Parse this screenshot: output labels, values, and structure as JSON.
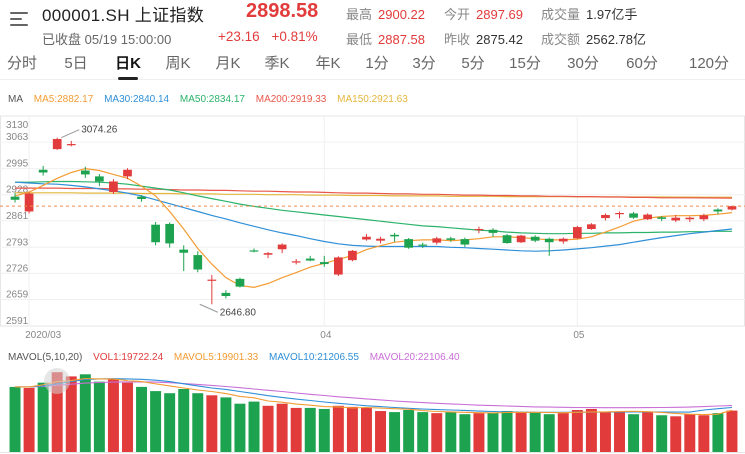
{
  "header": {
    "title": "000001.SH 上证指数",
    "status": "已收盘 05/19 15:00:00",
    "price": "2898.58",
    "change": "+23.16",
    "change_pct": "+0.81%",
    "stats": {
      "high_label": "最高",
      "high": "2900.22",
      "open_label": "今开",
      "open": "2897.69",
      "vol_label": "成交量",
      "vol": "1.97亿手",
      "low_label": "最低",
      "low": "2887.58",
      "prev_label": "昨收",
      "prev": "2875.42",
      "amount_label": "成交额",
      "amount": "2562.78亿"
    }
  },
  "tabs": [
    "分时",
    "5日",
    "日K",
    "周K",
    "月K",
    "季K",
    "年K",
    "1分",
    "3分",
    "5分",
    "15分",
    "30分",
    "60分",
    "120分"
  ],
  "active_tab": "日K",
  "ma_legend": {
    "ma": "MA",
    "ma5": "MA5:2882.17",
    "ma30": "MA30:2840.14",
    "ma50": "MA50:2834.17",
    "ma200": "MA200:2919.33",
    "ma150": "MA150:2921.63"
  },
  "vol_legend": {
    "mavol": "MAVOL(5,10,20)",
    "vol": "VOL1:19722.24",
    "mavol5": "MAVOL5:19901.33",
    "mavol10": "MAVOL10:21206.55",
    "mavol20": "MAVOL20:22106.40"
  },
  "colors": {
    "up": "#e23b3b",
    "down": "#1da34f",
    "ma5": "#f39c33",
    "ma30": "#2f8fd8",
    "ma50": "#2bb36b",
    "ma200": "#e8574a",
    "ma150": "#e3b63c",
    "mavol20": "#c96fd6"
  },
  "chart_data": {
    "type": "candlestick",
    "y_ticks": [
      "3130",
      "3063",
      "2995",
      "2928",
      "2861",
      "2793",
      "2726",
      "2659",
      "2591"
    ],
    "ylim": [
      2591,
      3130
    ],
    "x_labels": [
      {
        "label": "2020/03",
        "index": 1
      },
      {
        "label": "04",
        "index": 22
      },
      {
        "label": "05",
        "index": 40
      }
    ],
    "current_price": 2898.58,
    "annotations": [
      {
        "text": "3074.26",
        "index": 3,
        "value": 3074.26
      },
      {
        "text": "2646.80",
        "index": 13,
        "value": 2646.8
      }
    ],
    "candles": [
      [
        2923,
        2915,
        2932,
        2908
      ],
      [
        2885,
        2931,
        2934,
        2880
      ],
      [
        2992,
        2985,
        3002,
        2977
      ],
      [
        3045,
        3071,
        3074.26,
        3043
      ],
      [
        3055,
        3058,
        3066,
        3052
      ],
      [
        2990,
        2980,
        3000,
        2971
      ],
      [
        2975,
        2962,
        2981,
        2950
      ],
      [
        2935,
        2962,
        2968,
        2930
      ],
      [
        2975,
        2992,
        2996,
        2968
      ],
      [
        2923,
        2917,
        2927,
        2910
      ],
      [
        2851,
        2806,
        2858,
        2798
      ],
      [
        2853,
        2803,
        2857,
        2792
      ],
      [
        2787,
        2779,
        2798,
        2732
      ],
      [
        2773,
        2736,
        2783,
        2729
      ],
      [
        2710,
        2710,
        2722,
        2646.8
      ],
      [
        2676,
        2668,
        2683,
        2662
      ],
      [
        2712,
        2692,
        2715,
        2690
      ],
      [
        2785,
        2783,
        2790,
        2780
      ],
      [
        2774,
        2778,
        2781,
        2765
      ],
      [
        2788,
        2800,
        2803,
        2778
      ],
      [
        2757,
        2757,
        2763,
        2749
      ],
      [
        2764,
        2759,
        2771,
        2757
      ],
      [
        2755,
        2750,
        2771,
        2743
      ],
      [
        2723,
        2767,
        2770,
        2719
      ],
      [
        2760,
        2784,
        2786,
        2757
      ],
      [
        2813,
        2820,
        2827,
        2810
      ],
      [
        2810,
        2815,
        2820,
        2803
      ],
      [
        2825,
        2821,
        2830,
        2807
      ],
      [
        2814,
        2792,
        2817,
        2789
      ],
      [
        2800,
        2797,
        2805,
        2791
      ],
      [
        2805,
        2816,
        2820,
        2800
      ],
      [
        2816,
        2812,
        2820,
        2807
      ],
      [
        2814,
        2800,
        2818,
        2794
      ],
      [
        2838,
        2840,
        2846,
        2829
      ],
      [
        2838,
        2830,
        2842,
        2820
      ],
      [
        2824,
        2804,
        2827,
        2802
      ],
      [
        2806,
        2823,
        2825,
        2804
      ],
      [
        2820,
        2810,
        2824,
        2806
      ],
      [
        2815,
        2806,
        2818,
        2771
      ],
      [
        2808,
        2815,
        2818,
        2802
      ],
      [
        2816,
        2845,
        2848,
        2814
      ],
      [
        2840,
        2852,
        2855,
        2838
      ],
      [
        2868,
        2876,
        2880,
        2862
      ],
      [
        2878,
        2881,
        2885,
        2867
      ],
      [
        2880,
        2869,
        2884,
        2866
      ],
      [
        2865,
        2877,
        2880,
        2863
      ],
      [
        2870,
        2866,
        2873,
        2860
      ],
      [
        2862,
        2869,
        2876,
        2858
      ],
      [
        2865,
        2869,
        2872,
        2858
      ],
      [
        2865,
        2875,
        2879,
        2860
      ],
      [
        2890,
        2885,
        2893,
        2878
      ],
      [
        2890,
        2898.58,
        2900.22,
        2887.58
      ]
    ],
    "ma5": [
      2925,
      2935,
      2952,
      2970,
      2985,
      2995,
      2990,
      2980,
      2970,
      2950,
      2925,
      2885,
      2840,
      2790,
      2750,
      2715,
      2695,
      2690,
      2700,
      2715,
      2728,
      2742,
      2752,
      2762,
      2772,
      2787,
      2797,
      2806,
      2810,
      2812,
      2812,
      2810,
      2812,
      2815,
      2820,
      2820,
      2818,
      2815,
      2812,
      2812,
      2814,
      2820,
      2832,
      2845,
      2860,
      2868,
      2872,
      2874,
      2874,
      2875,
      2878,
      2882
    ],
    "ma30": [
      2960,
      2958,
      2956,
      2955,
      2952,
      2948,
      2943,
      2938,
      2932,
      2925,
      2915,
      2905,
      2895,
      2885,
      2875,
      2866,
      2856,
      2847,
      2838,
      2830,
      2823,
      2815,
      2808,
      2802,
      2798,
      2796,
      2795,
      2795,
      2795,
      2795,
      2795,
      2793,
      2792,
      2790,
      2788,
      2786,
      2784,
      2783,
      2784,
      2786,
      2789,
      2792,
      2796,
      2800,
      2806,
      2812,
      2818,
      2823,
      2828,
      2832,
      2836,
      2840
    ],
    "ma50": [
      2960,
      2960,
      2961,
      2962,
      2962,
      2961,
      2960,
      2958,
      2955,
      2950,
      2945,
      2940,
      2933,
      2925,
      2918,
      2911,
      2904,
      2898,
      2893,
      2888,
      2884,
      2880,
      2876,
      2872,
      2868,
      2864,
      2860,
      2856,
      2852,
      2848,
      2846,
      2843,
      2840,
      2837,
      2835,
      2832,
      2830,
      2829,
      2828,
      2828,
      2829,
      2829,
      2830,
      2830,
      2831,
      2831,
      2832,
      2832,
      2833,
      2833,
      2834,
      2834
    ],
    "ma200": [
      2945,
      2945,
      2945,
      2945,
      2944,
      2944,
      2944,
      2943,
      2943,
      2942,
      2942,
      2941,
      2940,
      2940,
      2939,
      2939,
      2938,
      2937,
      2937,
      2936,
      2935,
      2935,
      2934,
      2933,
      2932,
      2932,
      2931,
      2930,
      2930,
      2929,
      2929,
      2928,
      2927,
      2927,
      2926,
      2926,
      2925,
      2925,
      2924,
      2924,
      2923,
      2923,
      2922,
      2922,
      2921,
      2921,
      2920,
      2920,
      2920,
      2919.7,
      2919.5,
      2919.33
    ],
    "ma150": [
      2933,
      2933,
      2933,
      2933,
      2933,
      2932,
      2932,
      2932,
      2932,
      2931,
      2931,
      2931,
      2930,
      2930,
      2930,
      2929,
      2929,
      2929,
      2928,
      2928,
      2928,
      2927,
      2927,
      2927,
      2926,
      2926,
      2926,
      2925,
      2925,
      2925,
      2925,
      2924,
      2924,
      2924,
      2924,
      2923,
      2923,
      2923,
      2923,
      2922.8,
      2922.6,
      2922.5,
      2922.4,
      2922.3,
      2922.2,
      2922.1,
      2922,
      2921.9,
      2921.8,
      2921.7,
      2921.65,
      2921.63
    ],
    "volume": {
      "values": [
        31000,
        30500,
        33000,
        38000,
        36000,
        37000,
        33500,
        35000,
        33000,
        31000,
        29000,
        28000,
        30000,
        28000,
        27000,
        26000,
        23000,
        24000,
        22000,
        23000,
        21000,
        21000,
        20500,
        22000,
        21500,
        21000,
        19500,
        19000,
        20000,
        19000,
        18500,
        19000,
        18000,
        18500,
        18800,
        19500,
        19000,
        19000,
        18000,
        18500,
        20000,
        20500,
        19000,
        18800,
        18000,
        19000,
        17500,
        17000,
        18000,
        17500,
        18500,
        19722.24
      ],
      "ylim": [
        0,
        40000
      ],
      "mavol5": [
        31000,
        31000,
        32000,
        33500,
        34000,
        35000,
        34800,
        34700,
        34000,
        33500,
        32500,
        31500,
        30500,
        29500,
        28800,
        27800,
        26500,
        25800,
        24300,
        23700,
        22800,
        22300,
        21600,
        21500,
        21000,
        21200,
        20900,
        20600,
        20400,
        19700,
        19300,
        19100,
        18900,
        18700,
        18600,
        18800,
        18900,
        18900,
        18800,
        18700,
        18900,
        19100,
        19100,
        19300,
        19400,
        19200,
        18800,
        18400,
        18000,
        17800,
        18000,
        19901.33
      ],
      "mavol10": [
        31000,
        31000,
        31500,
        32500,
        33500,
        34500,
        34800,
        34900,
        34800,
        34600,
        34200,
        33500,
        32500,
        31500,
        30500,
        29800,
        28800,
        27800,
        26800,
        26000,
        25200,
        24500,
        23800,
        23200,
        22600,
        22000,
        21600,
        21200,
        20800,
        20500,
        20200,
        20000,
        19800,
        19500,
        19300,
        19100,
        19000,
        18900,
        18900,
        18900,
        18900,
        19000,
        19000,
        19100,
        19100,
        19100,
        19000,
        19000,
        19000,
        20000,
        20600,
        21206.55
      ],
      "mavol20": [
        31000,
        31000,
        31200,
        31800,
        32300,
        32800,
        33100,
        33300,
        33400,
        33400,
        33300,
        33000,
        32600,
        32200,
        31700,
        31200,
        30600,
        30000,
        29400,
        28800,
        28100,
        27500,
        26900,
        26300,
        25800,
        25300,
        24800,
        24300,
        23900,
        23500,
        23200,
        22900,
        22600,
        22300,
        22100,
        21900,
        21700,
        21500,
        21400,
        21300,
        21200,
        21150,
        21100,
        21100,
        21100,
        21150,
        21200,
        21300,
        21400,
        21600,
        21900,
        22106.4
      ]
    }
  }
}
